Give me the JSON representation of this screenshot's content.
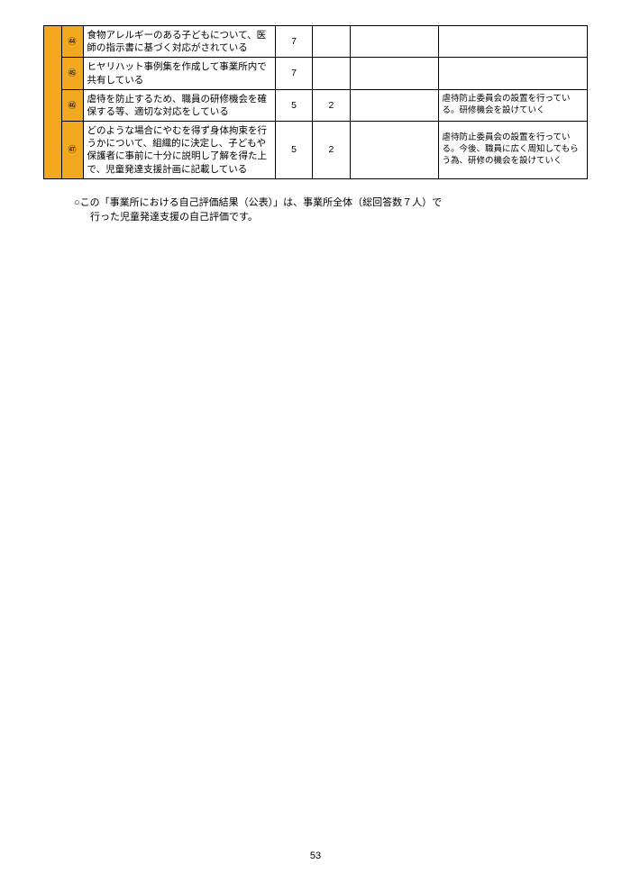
{
  "table": {
    "rows": [
      {
        "num": "㊹",
        "desc": "食物アレルギーのある子どもについて、医師の指示書に基づく対応がされている",
        "v1": "7",
        "v2": "",
        "v3": "",
        "note": ""
      },
      {
        "num": "㊺",
        "desc": "ヒヤリハット事例集を作成して事業所内で共有している",
        "v1": "7",
        "v2": "",
        "v3": "",
        "note": ""
      },
      {
        "num": "㊻",
        "desc": "虐待を防止するため、職員の研修機会を確保する等、適切な対応をしている",
        "v1": "5",
        "v2": "2",
        "v3": "",
        "note": "虐待防止委員会の設置を行っている。研修機会を設けていく"
      },
      {
        "num": "㊼",
        "desc": "どのような場合にやむを得ず身体拘束を行うかについて、組織的に決定し、子どもや保護者に事前に十分に説明し了解を得た上で、児童発達支援計画に記載している",
        "v1": "5",
        "v2": "2",
        "v3": "",
        "note": "虐待防止委員会の設置を行っている。今後、職員に広く周知してもらう為、研修の機会を設けていく"
      }
    ],
    "colors": {
      "highlight": "#f3a91f",
      "border": "#000000",
      "bg": "#ffffff"
    }
  },
  "footnote": {
    "line1": "○この「事業所における自己評価結果（公表）」は、事業所全体（総回答数７人）で",
    "line2": "行った児童発達支援の自己評価です。"
  },
  "page_number": "53"
}
